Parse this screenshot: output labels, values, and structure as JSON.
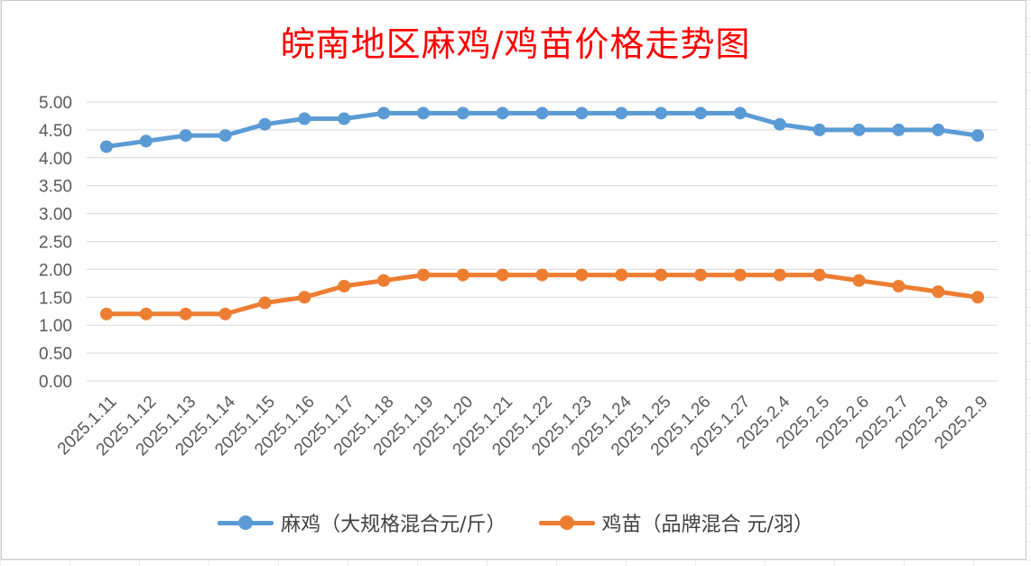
{
  "chart_data": {
    "type": "line",
    "title": "皖南地区麻鸡/鸡苗价格走势图",
    "categories": [
      "2025.1.11",
      "2025.1.12",
      "2025.1.13",
      "2025.1.14",
      "2025.1.15",
      "2025.1.16",
      "2025.1.17",
      "2025.1.18",
      "2025.1.19",
      "2025.1.20",
      "2025.1.21",
      "2025.1.22",
      "2025.1.23",
      "2025.1.24",
      "2025.1.25",
      "2025.1.26",
      "2025.1.27",
      "2025.2.4",
      "2025.2.5",
      "2025.2.6",
      "2025.2.7",
      "2025.2.8",
      "2025.2.9"
    ],
    "series": [
      {
        "name": "麻鸡（大规格混合元/斤）",
        "color": "#5b9bd5",
        "values": [
          4.2,
          4.3,
          4.4,
          4.4,
          4.6,
          4.7,
          4.7,
          4.8,
          4.8,
          4.8,
          4.8,
          4.8,
          4.8,
          4.8,
          4.8,
          4.8,
          4.8,
          4.6,
          4.5,
          4.5,
          4.5,
          4.5,
          4.4
        ]
      },
      {
        "name": "鸡苗（品牌混合 元/羽）",
        "color": "#ed7d31",
        "values": [
          1.2,
          1.2,
          1.2,
          1.2,
          1.4,
          1.5,
          1.7,
          1.8,
          1.9,
          1.9,
          1.9,
          1.9,
          1.9,
          1.9,
          1.9,
          1.9,
          1.9,
          1.9,
          1.9,
          1.8,
          1.7,
          1.6,
          1.5
        ]
      }
    ],
    "yticks": [
      "0.00",
      "0.50",
      "1.00",
      "1.50",
      "2.00",
      "2.50",
      "3.00",
      "3.50",
      "4.00",
      "4.50",
      "5.00"
    ],
    "ylim": [
      0,
      5
    ],
    "grid": "horizontal",
    "legend_position": "bottom"
  }
}
